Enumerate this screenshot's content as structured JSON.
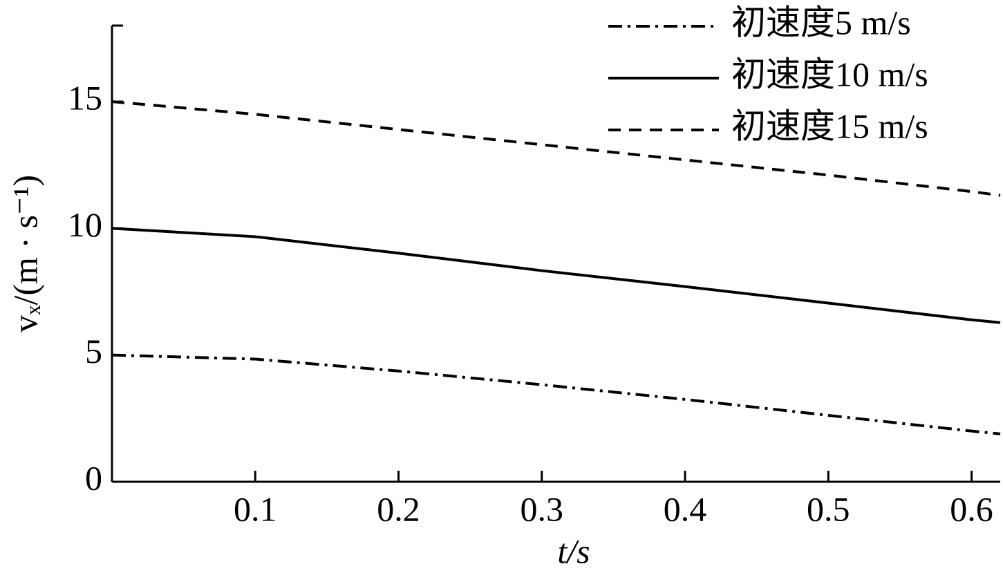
{
  "chart_data": {
    "type": "line",
    "xlabel": "t/s",
    "ylabel": "vₓ/(m · s⁻¹)",
    "x": [
      0,
      0.1,
      0.2,
      0.3,
      0.4,
      0.5,
      0.6,
      0.62
    ],
    "series": [
      {
        "name": "初速度5 m/s",
        "color": "#000000",
        "style": "dashdot",
        "values": [
          5,
          4.84,
          4.37,
          3.83,
          3.25,
          2.62,
          2.0,
          1.89
        ]
      },
      {
        "name": "初速度10 m/s",
        "color": "#000000",
        "style": "solid",
        "values": [
          10,
          9.67,
          9.02,
          8.33,
          7.7,
          7.05,
          6.39,
          6.28
        ]
      },
      {
        "name": "初速度15 m/s",
        "color": "#000000",
        "style": "dashed",
        "values": [
          15,
          14.5,
          13.9,
          13.3,
          12.7,
          12.1,
          11.45,
          11.3
        ]
      }
    ],
    "xlim": [
      0,
      0.62
    ],
    "xticks": [
      0.1,
      0.2,
      0.3,
      0.4,
      0.5,
      0.6
    ],
    "ylim": [
      0,
      18
    ],
    "yticks": [
      0,
      5,
      10,
      15
    ],
    "legend": "upper-right"
  }
}
